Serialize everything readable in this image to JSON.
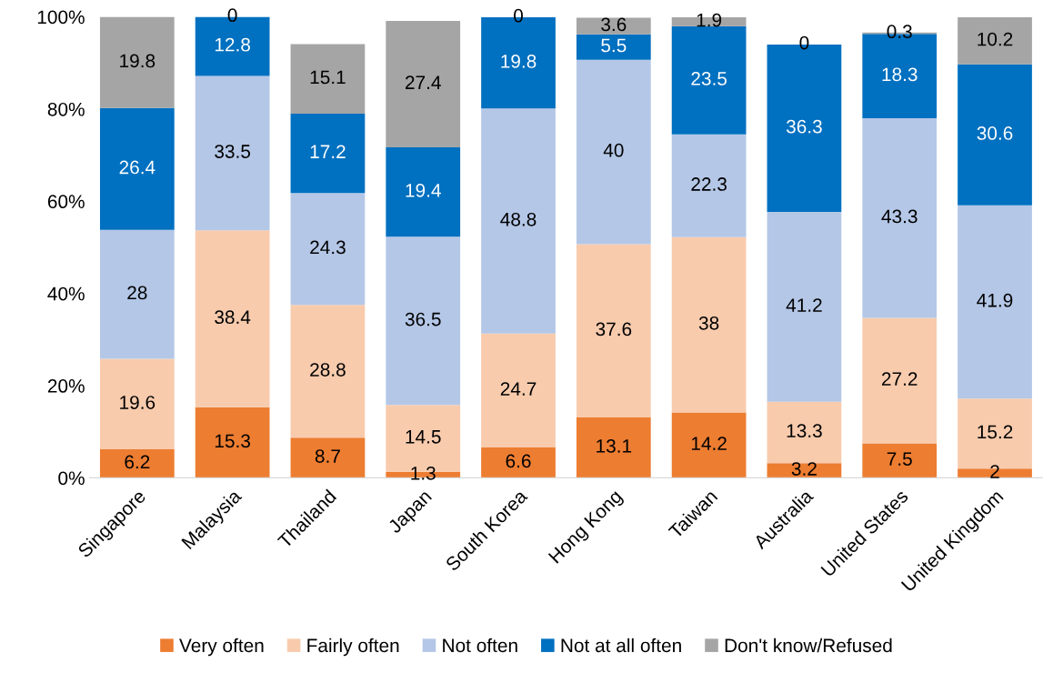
{
  "chart_data": {
    "type": "bar",
    "stacked": true,
    "categories": [
      "Singapore",
      "Malaysia",
      "Thailand",
      "Japan",
      "South Korea",
      "Hong Kong",
      "Taiwan",
      "Australia",
      "United States",
      "United Kingdom"
    ],
    "series": [
      {
        "name": "Very often",
        "color": "#ed7d31",
        "values": [
          6.2,
          15.3,
          8.7,
          1.3,
          6.6,
          13.1,
          14.2,
          3.2,
          7.5,
          2
        ]
      },
      {
        "name": "Fairly often",
        "color": "#f8cbad",
        "values": [
          19.6,
          38.4,
          28.8,
          14.5,
          24.7,
          37.6,
          38,
          13.3,
          27.2,
          15.2
        ]
      },
      {
        "name": "Not often",
        "color": "#b4c7e7",
        "values": [
          28,
          33.5,
          24.3,
          36.5,
          48.8,
          40,
          22.3,
          41.2,
          43.3,
          41.9
        ]
      },
      {
        "name": "Not at all often",
        "color": "#0070c0",
        "values": [
          26.4,
          12.8,
          17.2,
          19.4,
          19.8,
          5.5,
          23.5,
          36.3,
          18.3,
          30.6
        ]
      },
      {
        "name": "Don't know/Refused",
        "color": "#a5a5a5",
        "values": [
          19.8,
          0,
          15.1,
          27.4,
          0,
          3.6,
          1.9,
          0,
          0.3,
          10.2
        ]
      }
    ],
    "ylim": [
      0,
      100
    ],
    "yticks": [
      {
        "value": 0,
        "label": "0%"
      },
      {
        "value": 20,
        "label": "20%"
      },
      {
        "value": 40,
        "label": "40%"
      },
      {
        "value": 60,
        "label": "60%"
      },
      {
        "value": 80,
        "label": "80%"
      },
      {
        "value": 100,
        "label": "100%"
      }
    ],
    "data_labels": true,
    "grid": false,
    "legend": "bottom"
  }
}
